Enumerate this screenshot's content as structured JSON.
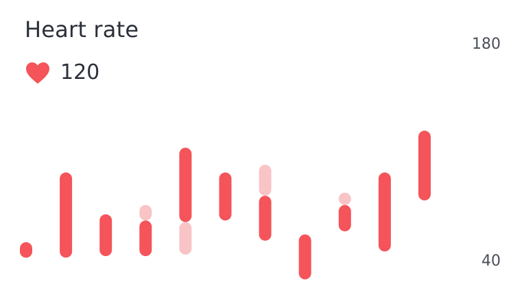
{
  "header": {
    "title": "Heart rate",
    "current_value": "120"
  },
  "colors": {
    "accent": "#f4545a",
    "accent_light": "#f9c4c6",
    "text": "#2b2f38"
  },
  "icons": {
    "current": "heart-icon"
  },
  "chart_data": {
    "type": "bar",
    "subtype": "range",
    "title": "Heart rate",
    "ylim": [
      40,
      180
    ],
    "y_ticks": [
      180,
      40
    ],
    "grid": false,
    "series": [
      {
        "ranges": [
          [
            42,
            52
          ],
          [
            42,
            97
          ],
          [
            43,
            70
          ],
          [
            43,
            66
          ],
          [
            65,
            113
          ],
          [
            66,
            97
          ],
          [
            53,
            82
          ],
          [
            28,
            57
          ],
          [
            59,
            76
          ],
          [
            46,
            97
          ],
          [
            79,
            124
          ]
        ]
      },
      {
        "ranges": [
          [
            null,
            null
          ],
          [
            null,
            null
          ],
          [
            null,
            null
          ],
          [
            66,
            76
          ],
          [
            44,
            65
          ],
          [
            null,
            null
          ],
          [
            82,
            102
          ],
          [
            null,
            null
          ],
          [
            76,
            84
          ],
          [
            null,
            null
          ],
          [
            null,
            null
          ]
        ]
      }
    ]
  }
}
